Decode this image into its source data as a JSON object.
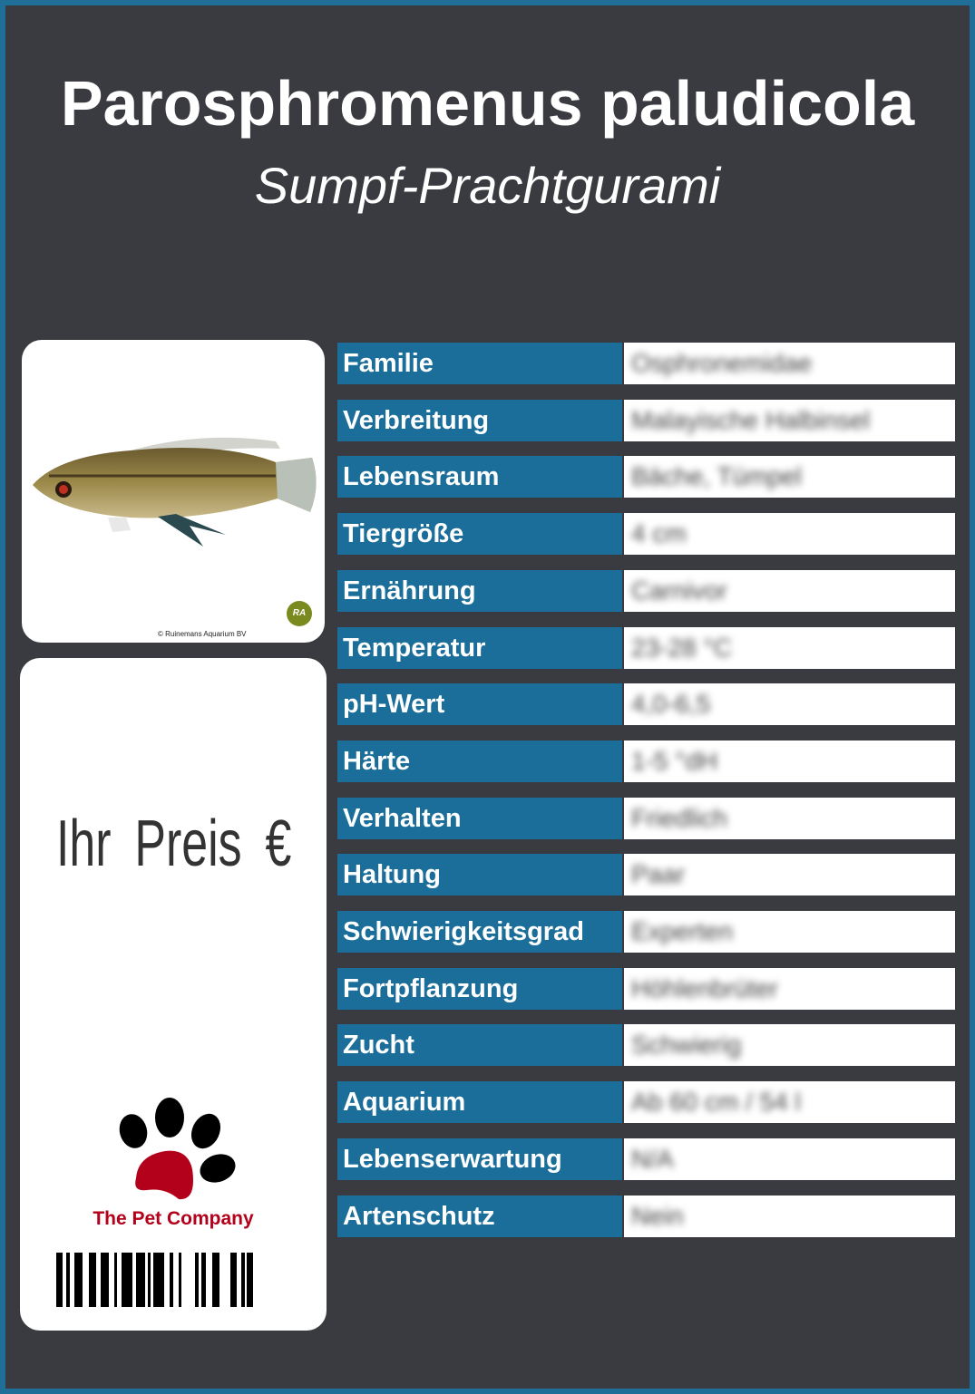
{
  "title": "Parosphromenus paludicola",
  "subtitle": "Sumpf-Prachtgurami",
  "photo": {
    "copyright": "© Ruinemans Aquarium BV",
    "logo_text": "RA"
  },
  "price_label": "Ihr Preis €",
  "brand": {
    "name": "The Pet Company",
    "color": "#b3001b"
  },
  "colors": {
    "border": "#1f6f99",
    "background": "#3a3b40",
    "label": "#1b6e9a"
  },
  "rows": [
    {
      "label": "Familie",
      "value": "Osphronemidae"
    },
    {
      "label": "Verbreitung",
      "value": "Malayische Halbinsel"
    },
    {
      "label": "Lebensraum",
      "value": "Bäche, Tümpel"
    },
    {
      "label": "Tiergröße",
      "value": "4 cm"
    },
    {
      "label": "Ernährung",
      "value": "Carnivor"
    },
    {
      "label": "Temperatur",
      "value": "23-28 °C"
    },
    {
      "label": "pH-Wert",
      "value": "4,0-6,5"
    },
    {
      "label": "Härte",
      "value": "1-5 °dH"
    },
    {
      "label": "Verhalten",
      "value": "Friedlich"
    },
    {
      "label": "Haltung",
      "value": "Paar"
    },
    {
      "label": "Schwierigkeitsgrad",
      "value": "Experten"
    },
    {
      "label": "Fortpflanzung",
      "value": "Höhlenbrüter"
    },
    {
      "label": "Zucht",
      "value": "Schwierig"
    },
    {
      "label": "Aquarium",
      "value": "Ab 60 cm / 54 l"
    },
    {
      "label": "Lebenserwartung",
      "value": "N/A"
    },
    {
      "label": "Artenschutz",
      "value": "Nein"
    }
  ]
}
